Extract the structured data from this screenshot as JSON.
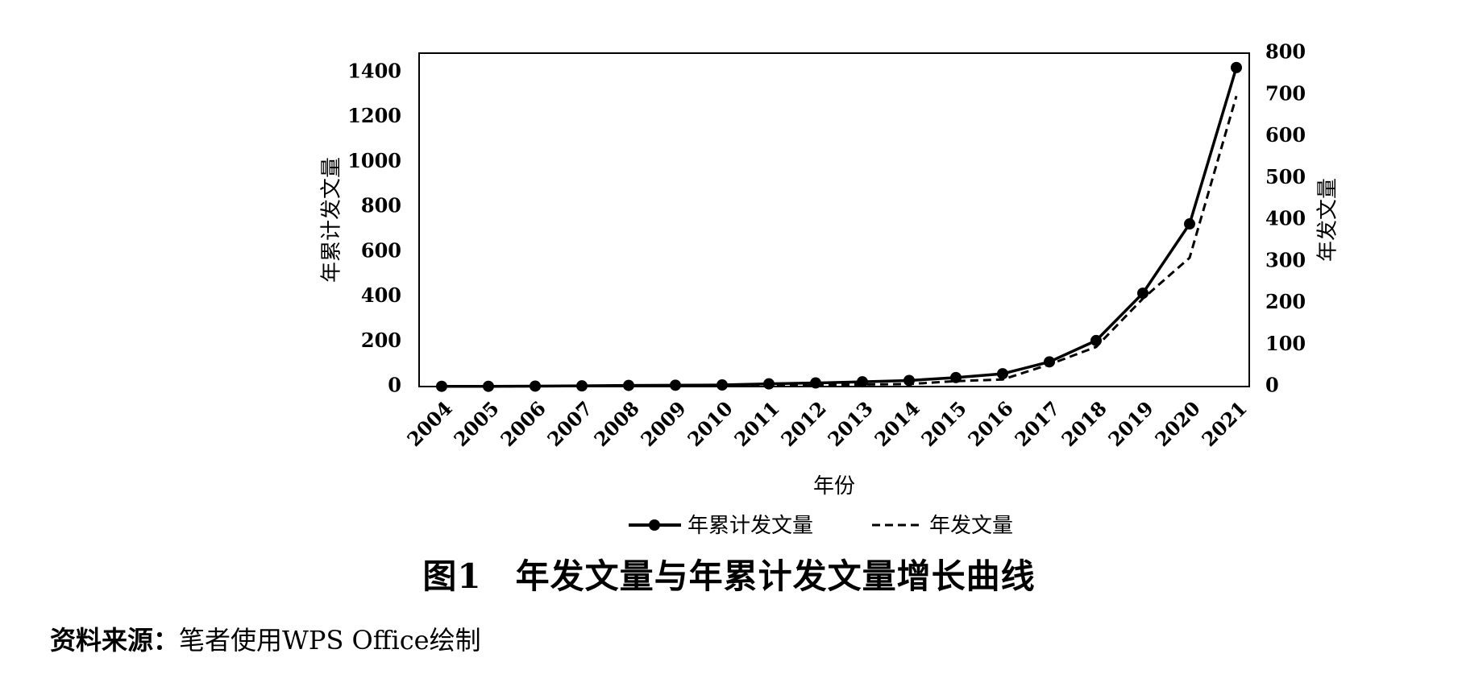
{
  "caption": {
    "number": "图1",
    "title": "年发文量与年累计发文量增长曲线"
  },
  "source": {
    "label": "资料来源：",
    "text": "笔者使用WPS Office绘制"
  },
  "chart_data": {
    "type": "line",
    "x": [
      "2004",
      "2005",
      "2006",
      "2007",
      "2008",
      "2009",
      "2010",
      "2011",
      "2012",
      "2013",
      "2014",
      "2015",
      "2016",
      "2017",
      "2018",
      "2019",
      "2020",
      "2021"
    ],
    "xlabel": "年份",
    "y_left": {
      "label": "年累计发文量",
      "lim": [
        0,
        1400
      ],
      "ticks": [
        0,
        200,
        400,
        600,
        800,
        1000,
        1200,
        1400
      ]
    },
    "y_right": {
      "label": "年发文量",
      "lim": [
        0,
        800
      ],
      "ticks": [
        0,
        100,
        200,
        300,
        400,
        500,
        600,
        700,
        800
      ]
    },
    "series": [
      {
        "name": "年累计发文量",
        "axis": "left",
        "style": "solid-marker",
        "values": [
          1,
          1,
          2,
          3,
          5,
          6,
          7,
          12,
          16,
          21,
          27,
          40,
          57,
          110,
          205,
          416,
          725,
          1422
        ]
      },
      {
        "name": "年发文量",
        "axis": "right",
        "style": "dashed",
        "values": [
          1,
          0,
          1,
          1,
          2,
          1,
          1,
          5,
          4,
          5,
          6,
          13,
          17,
          53,
          95,
          211,
          309,
          697
        ]
      }
    ],
    "grid": false,
    "legend": "bottom"
  }
}
